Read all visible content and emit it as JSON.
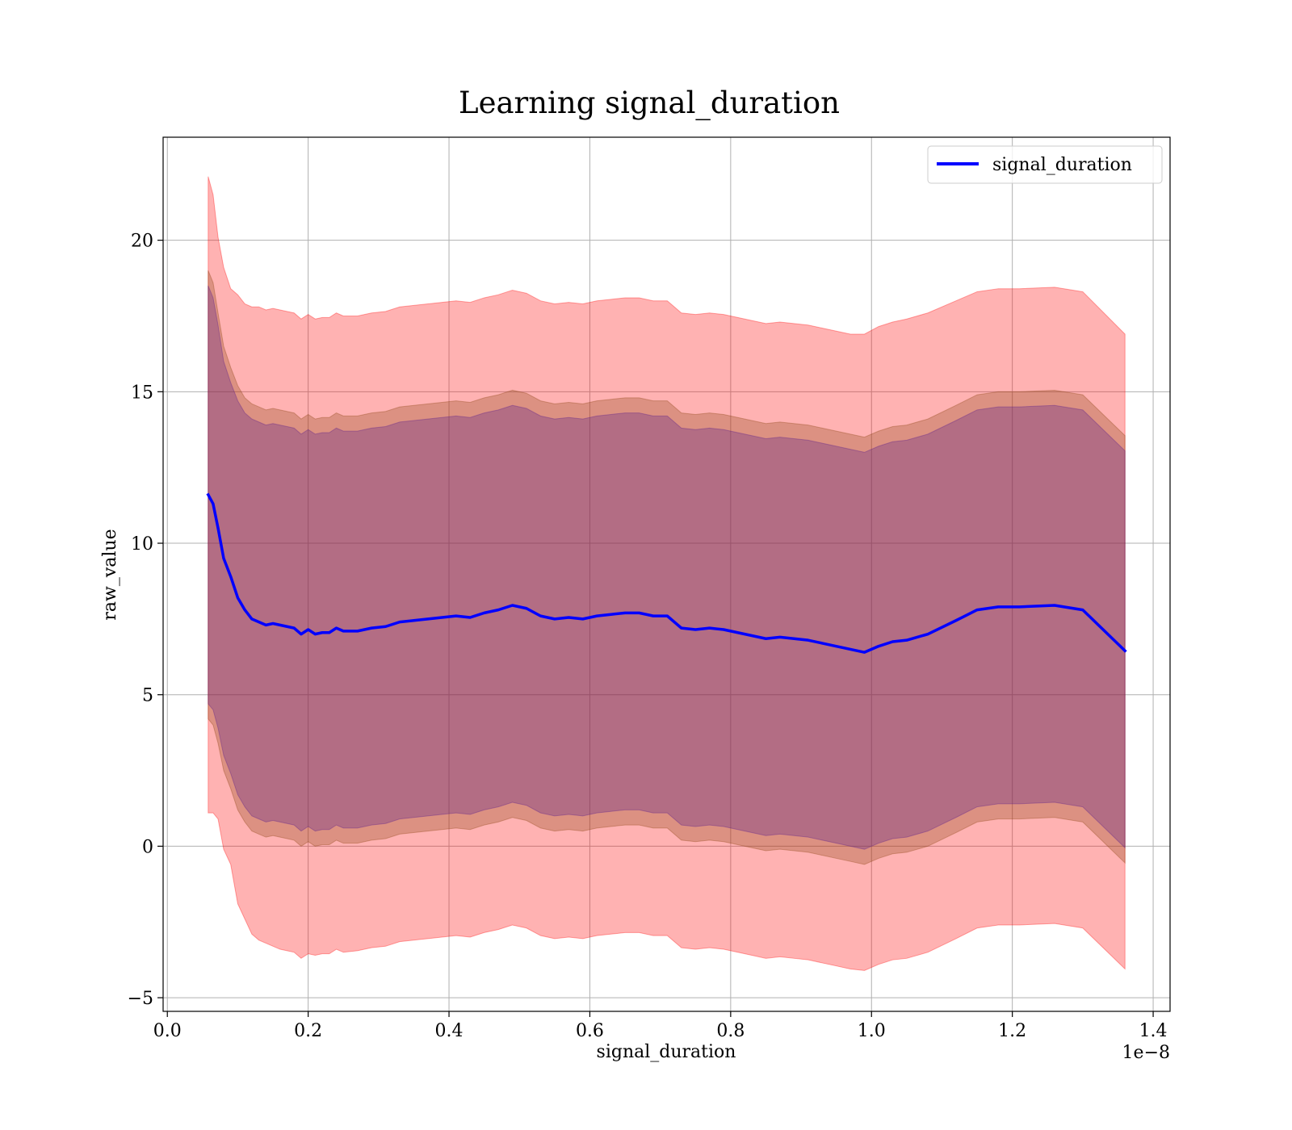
{
  "chart_data": {
    "type": "line",
    "title": "Learning signal_duration",
    "xlabel": "signal_duration",
    "ylabel": "raw_value",
    "x_offset_label": "1e−8",
    "xlim": [
      -0.006,
      1.424
    ],
    "ylim": [
      -5.45,
      23.4
    ],
    "xticks": [
      0.0,
      0.2,
      0.4,
      0.6,
      0.8,
      1.0,
      1.2,
      1.4
    ],
    "xtick_labels": [
      "0.0",
      "0.2",
      "0.4",
      "0.6",
      "0.8",
      "1.0",
      "1.2",
      "1.4"
    ],
    "yticks": [
      -5,
      0,
      5,
      10,
      15,
      20
    ],
    "ytick_labels": [
      "−5",
      "0",
      "5",
      "10",
      "15",
      "20"
    ],
    "grid": true,
    "legend_position": "top-right",
    "colors": {
      "line": "#0000ff",
      "outer_band": "#ff0000",
      "middle_band": "#8b4513",
      "inner_band": "#551a8b"
    },
    "x": [
      0.058,
      0.065,
      0.072,
      0.08,
      0.09,
      0.1,
      0.11,
      0.12,
      0.13,
      0.14,
      0.15,
      0.16,
      0.17,
      0.18,
      0.19,
      0.2,
      0.21,
      0.22,
      0.23,
      0.24,
      0.25,
      0.27,
      0.29,
      0.31,
      0.33,
      0.35,
      0.37,
      0.39,
      0.41,
      0.43,
      0.45,
      0.47,
      0.49,
      0.51,
      0.53,
      0.55,
      0.57,
      0.59,
      0.61,
      0.63,
      0.65,
      0.67,
      0.69,
      0.71,
      0.73,
      0.75,
      0.77,
      0.79,
      0.81,
      0.83,
      0.85,
      0.87,
      0.89,
      0.91,
      0.93,
      0.95,
      0.97,
      0.99,
      1.01,
      1.03,
      1.05,
      1.08,
      1.12,
      1.15,
      1.18,
      1.21,
      1.26,
      1.3,
      1.36
    ],
    "series": [
      {
        "name": "signal_duration",
        "values": [
          11.6,
          11.3,
          10.5,
          9.5,
          8.9,
          8.2,
          7.8,
          7.5,
          7.4,
          7.3,
          7.35,
          7.3,
          7.25,
          7.2,
          7.0,
          7.15,
          7.0,
          7.05,
          7.05,
          7.2,
          7.1,
          7.1,
          7.2,
          7.25,
          7.4,
          7.45,
          7.5,
          7.55,
          7.6,
          7.55,
          7.7,
          7.8,
          7.95,
          7.85,
          7.6,
          7.5,
          7.55,
          7.5,
          7.6,
          7.65,
          7.7,
          7.7,
          7.6,
          7.6,
          7.2,
          7.15,
          7.2,
          7.15,
          7.05,
          6.95,
          6.85,
          6.9,
          6.85,
          6.8,
          6.7,
          6.6,
          6.5,
          6.4,
          6.6,
          6.75,
          6.8,
          7.0,
          7.45,
          7.8,
          7.9,
          7.9,
          7.95,
          7.8,
          6.45
        ]
      }
    ],
    "bands": [
      {
        "color": "#ff0000",
        "upper": [
          22.1,
          21.5,
          20.1,
          19.1,
          18.4,
          18.2,
          17.9,
          17.8,
          17.8,
          17.7,
          17.75,
          17.7,
          17.65,
          17.6,
          17.4,
          17.55,
          17.4,
          17.45,
          17.45,
          17.6,
          17.5,
          17.5,
          17.6,
          17.65,
          17.8,
          17.85,
          17.9,
          17.95,
          18.0,
          17.95,
          18.1,
          18.2,
          18.35,
          18.25,
          18.0,
          17.9,
          17.95,
          17.9,
          18.0,
          18.05,
          18.1,
          18.1,
          18.0,
          18.0,
          17.6,
          17.55,
          17.6,
          17.55,
          17.45,
          17.35,
          17.25,
          17.3,
          17.25,
          17.2,
          17.1,
          17.0,
          16.9,
          16.9,
          17.15,
          17.3,
          17.4,
          17.6,
          18.0,
          18.3,
          18.4,
          18.4,
          18.45,
          18.3,
          16.9
        ],
        "lower": [
          1.1,
          1.1,
          0.9,
          -0.1,
          -0.6,
          -1.9,
          -2.4,
          -2.9,
          -3.1,
          -3.2,
          -3.3,
          -3.4,
          -3.45,
          -3.5,
          -3.7,
          -3.55,
          -3.6,
          -3.55,
          -3.55,
          -3.4,
          -3.5,
          -3.45,
          -3.35,
          -3.3,
          -3.15,
          -3.1,
          -3.05,
          -3.0,
          -2.95,
          -3.0,
          -2.85,
          -2.75,
          -2.6,
          -2.7,
          -2.95,
          -3.05,
          -3.0,
          -3.05,
          -2.95,
          -2.9,
          -2.85,
          -2.85,
          -2.95,
          -2.95,
          -3.35,
          -3.4,
          -3.35,
          -3.4,
          -3.5,
          -3.6,
          -3.7,
          -3.65,
          -3.7,
          -3.75,
          -3.85,
          -3.95,
          -4.05,
          -4.1,
          -3.9,
          -3.75,
          -3.7,
          -3.5,
          -3.05,
          -2.7,
          -2.6,
          -2.6,
          -2.55,
          -2.7,
          -4.05
        ]
      },
      {
        "color": "#8b4513",
        "upper": [
          19.0,
          18.6,
          17.6,
          16.5,
          15.8,
          15.2,
          14.8,
          14.6,
          14.5,
          14.4,
          14.45,
          14.4,
          14.35,
          14.3,
          14.1,
          14.25,
          14.1,
          14.15,
          14.15,
          14.3,
          14.2,
          14.2,
          14.3,
          14.35,
          14.5,
          14.55,
          14.6,
          14.65,
          14.7,
          14.65,
          14.8,
          14.9,
          15.05,
          14.95,
          14.7,
          14.6,
          14.65,
          14.6,
          14.7,
          14.75,
          14.8,
          14.8,
          14.7,
          14.7,
          14.3,
          14.25,
          14.3,
          14.25,
          14.15,
          14.05,
          13.95,
          14.0,
          13.95,
          13.9,
          13.8,
          13.7,
          13.6,
          13.5,
          13.7,
          13.85,
          13.9,
          14.1,
          14.55,
          14.9,
          15.0,
          15.0,
          15.05,
          14.9,
          13.55
        ],
        "lower": [
          4.2,
          4.0,
          3.4,
          2.5,
          1.9,
          1.2,
          0.8,
          0.5,
          0.4,
          0.3,
          0.35,
          0.3,
          0.25,
          0.2,
          0.0,
          0.15,
          0.0,
          0.05,
          0.05,
          0.2,
          0.1,
          0.1,
          0.2,
          0.25,
          0.4,
          0.45,
          0.5,
          0.55,
          0.6,
          0.55,
          0.7,
          0.8,
          0.95,
          0.85,
          0.6,
          0.5,
          0.55,
          0.5,
          0.6,
          0.65,
          0.7,
          0.7,
          0.6,
          0.6,
          0.2,
          0.15,
          0.2,
          0.15,
          0.05,
          -0.05,
          -0.15,
          -0.1,
          -0.15,
          -0.2,
          -0.3,
          -0.4,
          -0.5,
          -0.6,
          -0.4,
          -0.25,
          -0.2,
          0.0,
          0.45,
          0.8,
          0.9,
          0.9,
          0.95,
          0.8,
          -0.55
        ]
      },
      {
        "color": "#551a8b",
        "upper": [
          18.5,
          18.1,
          17.2,
          16.0,
          15.3,
          14.7,
          14.3,
          14.1,
          14.0,
          13.9,
          13.95,
          13.9,
          13.85,
          13.8,
          13.6,
          13.75,
          13.6,
          13.65,
          13.65,
          13.8,
          13.7,
          13.7,
          13.8,
          13.85,
          14.0,
          14.05,
          14.1,
          14.15,
          14.2,
          14.15,
          14.3,
          14.4,
          14.55,
          14.45,
          14.2,
          14.1,
          14.15,
          14.1,
          14.2,
          14.25,
          14.3,
          14.3,
          14.2,
          14.2,
          13.8,
          13.75,
          13.8,
          13.75,
          13.65,
          13.55,
          13.45,
          13.5,
          13.45,
          13.4,
          13.3,
          13.2,
          13.1,
          13.0,
          13.2,
          13.35,
          13.4,
          13.6,
          14.05,
          14.4,
          14.5,
          14.5,
          14.55,
          14.4,
          13.05
        ],
        "lower": [
          4.7,
          4.5,
          3.9,
          3.0,
          2.4,
          1.7,
          1.3,
          1.0,
          0.9,
          0.8,
          0.85,
          0.8,
          0.75,
          0.7,
          0.5,
          0.65,
          0.5,
          0.55,
          0.55,
          0.7,
          0.6,
          0.6,
          0.7,
          0.75,
          0.9,
          0.95,
          1.0,
          1.05,
          1.1,
          1.05,
          1.2,
          1.3,
          1.45,
          1.35,
          1.1,
          1.0,
          1.05,
          1.0,
          1.1,
          1.15,
          1.2,
          1.2,
          1.1,
          1.1,
          0.7,
          0.65,
          0.7,
          0.65,
          0.55,
          0.45,
          0.35,
          0.4,
          0.35,
          0.3,
          0.2,
          0.1,
          0.0,
          -0.1,
          0.1,
          0.25,
          0.3,
          0.5,
          0.95,
          1.3,
          1.4,
          1.4,
          1.45,
          1.3,
          -0.05
        ]
      }
    ]
  }
}
